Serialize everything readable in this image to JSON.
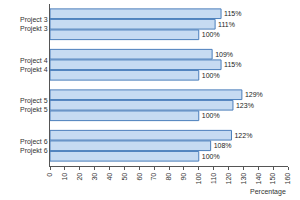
{
  "chart_data": {
    "type": "bar",
    "orientation": "horizontal",
    "categories": [
      "Project 3\nProjekt 3",
      "Project 4\nProjekt 4",
      "Project 5\nProjekt 5",
      "Project 6\nProjekt 6"
    ],
    "series": [
      {
        "color": "#c6dbf2",
        "values": [
          115,
          109,
          129,
          122
        ],
        "value_labels": [
          "115%",
          "109%",
          "129%",
          "122%"
        ]
      },
      {
        "color": "#c6dbf2",
        "values": [
          111,
          115,
          123,
          108
        ],
        "value_labels": [
          "111%",
          "115%",
          "123%",
          "108%"
        ]
      },
      {
        "color": "#c6dbf2",
        "values": [
          100,
          100,
          100,
          100
        ],
        "value_labels": [
          "100%",
          "100%",
          "100%",
          "100%"
        ]
      }
    ],
    "x_label": "Percentage",
    "xlim": [
      0,
      160
    ],
    "xticks": [
      0,
      10,
      20,
      30,
      40,
      50,
      60,
      70,
      80,
      90,
      100,
      110,
      120,
      130,
      140,
      150,
      160
    ],
    "data_labels": true,
    "grid": false
  }
}
